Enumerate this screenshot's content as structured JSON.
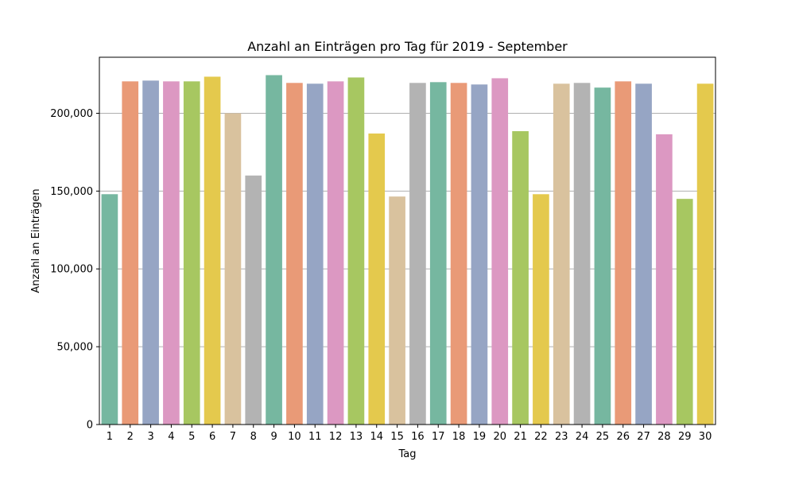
{
  "chart_data": {
    "type": "bar",
    "title": "Anzahl an Einträgen pro Tag für 2019 - September",
    "xlabel": "Tag",
    "ylabel": "Anzahl an Einträgen",
    "categories": [
      "1",
      "2",
      "3",
      "4",
      "5",
      "6",
      "7",
      "8",
      "9",
      "10",
      "11",
      "12",
      "13",
      "14",
      "15",
      "16",
      "17",
      "18",
      "19",
      "20",
      "21",
      "22",
      "23",
      "24",
      "25",
      "26",
      "27",
      "28",
      "29",
      "30"
    ],
    "values": [
      148000,
      220500,
      221000,
      220500,
      220500,
      223500,
      200000,
      160000,
      224500,
      219500,
      219000,
      220500,
      223000,
      187000,
      146500,
      219500,
      220000,
      219500,
      218500,
      222500,
      188500,
      148000,
      219000,
      219500,
      216500,
      220500,
      219000,
      186500,
      145000,
      219000
    ],
    "ylim": [
      0,
      236000
    ],
    "yticks": [
      0,
      50000,
      100000,
      150000,
      200000
    ],
    "ytick_labels": [
      "0",
      "50,000",
      "100,000",
      "150,000",
      "200,000"
    ],
    "grid": "y",
    "palette": [
      "#76b7a0",
      "#e99a77",
      "#96a5c4",
      "#dc98c2",
      "#a7c761",
      "#e4c94d",
      "#d9c29e",
      "#b3b3b3"
    ]
  }
}
